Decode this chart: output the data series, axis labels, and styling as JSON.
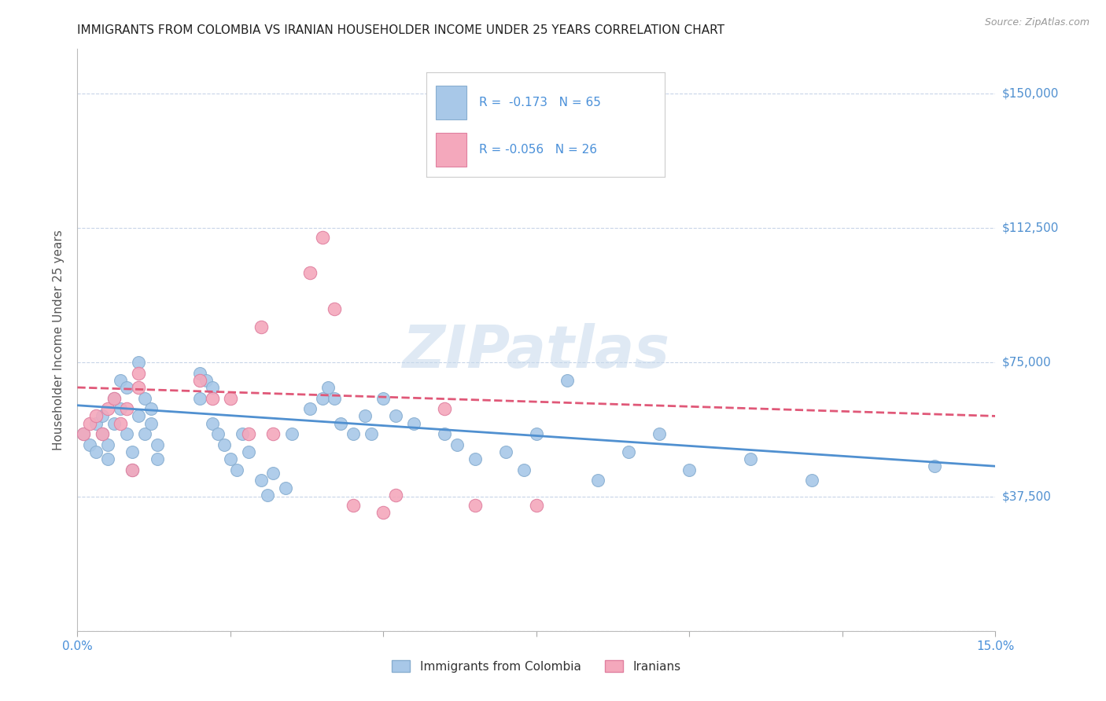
{
  "title": "IMMIGRANTS FROM COLOMBIA VS IRANIAN HOUSEHOLDER INCOME UNDER 25 YEARS CORRELATION CHART",
  "source": "Source: ZipAtlas.com",
  "ylabel": "Householder Income Under 25 years",
  "xlim": [
    0.0,
    0.15
  ],
  "ylim": [
    0,
    162500
  ],
  "yticks": [
    0,
    37500,
    75000,
    112500,
    150000
  ],
  "ytick_labels": [
    "",
    "$37,500",
    "$75,000",
    "$112,500",
    "$150,000"
  ],
  "xticks": [
    0.0,
    0.025,
    0.05,
    0.075,
    0.1,
    0.125,
    0.15
  ],
  "xtick_labels": [
    "0.0%",
    "",
    "",
    "",
    "",
    "",
    "15.0%"
  ],
  "colombia_color": "#a8c8e8",
  "iran_color": "#f4a8bc",
  "colombia_edge": "#88aed0",
  "iran_edge": "#e080a0",
  "trendline_colombia_color": "#5090d0",
  "trendline_iran_color": "#e05878",
  "legend_text_color": "#4a90d9",
  "watermark": "ZIPatlas",
  "background_color": "#ffffff",
  "grid_color": "#c8d4e8",
  "colombia_scatter": [
    [
      0.001,
      55000
    ],
    [
      0.002,
      52000
    ],
    [
      0.003,
      58000
    ],
    [
      0.003,
      50000
    ],
    [
      0.004,
      60000
    ],
    [
      0.004,
      55000
    ],
    [
      0.005,
      52000
    ],
    [
      0.005,
      48000
    ],
    [
      0.006,
      65000
    ],
    [
      0.006,
      58000
    ],
    [
      0.007,
      70000
    ],
    [
      0.007,
      62000
    ],
    [
      0.008,
      68000
    ],
    [
      0.008,
      55000
    ],
    [
      0.009,
      50000
    ],
    [
      0.009,
      45000
    ],
    [
      0.01,
      75000
    ],
    [
      0.01,
      60000
    ],
    [
      0.011,
      65000
    ],
    [
      0.011,
      55000
    ],
    [
      0.012,
      62000
    ],
    [
      0.012,
      58000
    ],
    [
      0.013,
      52000
    ],
    [
      0.013,
      48000
    ],
    [
      0.02,
      72000
    ],
    [
      0.02,
      65000
    ],
    [
      0.021,
      70000
    ],
    [
      0.022,
      68000
    ],
    [
      0.022,
      58000
    ],
    [
      0.023,
      55000
    ],
    [
      0.024,
      52000
    ],
    [
      0.025,
      48000
    ],
    [
      0.026,
      45000
    ],
    [
      0.027,
      55000
    ],
    [
      0.028,
      50000
    ],
    [
      0.03,
      42000
    ],
    [
      0.031,
      38000
    ],
    [
      0.032,
      44000
    ],
    [
      0.034,
      40000
    ],
    [
      0.035,
      55000
    ],
    [
      0.038,
      62000
    ],
    [
      0.04,
      65000
    ],
    [
      0.041,
      68000
    ],
    [
      0.042,
      65000
    ],
    [
      0.043,
      58000
    ],
    [
      0.045,
      55000
    ],
    [
      0.047,
      60000
    ],
    [
      0.048,
      55000
    ],
    [
      0.05,
      65000
    ],
    [
      0.052,
      60000
    ],
    [
      0.055,
      58000
    ],
    [
      0.06,
      55000
    ],
    [
      0.062,
      52000
    ],
    [
      0.065,
      48000
    ],
    [
      0.07,
      50000
    ],
    [
      0.073,
      45000
    ],
    [
      0.075,
      55000
    ],
    [
      0.08,
      70000
    ],
    [
      0.085,
      42000
    ],
    [
      0.09,
      50000
    ],
    [
      0.095,
      55000
    ],
    [
      0.1,
      45000
    ],
    [
      0.11,
      48000
    ],
    [
      0.12,
      42000
    ],
    [
      0.14,
      46000
    ]
  ],
  "iran_scatter": [
    [
      0.001,
      55000
    ],
    [
      0.002,
      58000
    ],
    [
      0.003,
      60000
    ],
    [
      0.004,
      55000
    ],
    [
      0.005,
      62000
    ],
    [
      0.006,
      65000
    ],
    [
      0.007,
      58000
    ],
    [
      0.008,
      62000
    ],
    [
      0.009,
      45000
    ],
    [
      0.01,
      68000
    ],
    [
      0.01,
      72000
    ],
    [
      0.02,
      70000
    ],
    [
      0.022,
      65000
    ],
    [
      0.025,
      65000
    ],
    [
      0.028,
      55000
    ],
    [
      0.03,
      85000
    ],
    [
      0.032,
      55000
    ],
    [
      0.038,
      100000
    ],
    [
      0.04,
      110000
    ],
    [
      0.042,
      90000
    ],
    [
      0.045,
      35000
    ],
    [
      0.05,
      33000
    ],
    [
      0.052,
      38000
    ],
    [
      0.06,
      62000
    ],
    [
      0.065,
      35000
    ],
    [
      0.075,
      35000
    ]
  ],
  "colombia_trend_x": [
    0.0,
    0.15
  ],
  "colombia_trend_y": [
    63000,
    46000
  ],
  "iran_trend_x": [
    0.0,
    0.15
  ],
  "iran_trend_y": [
    68000,
    60000
  ]
}
